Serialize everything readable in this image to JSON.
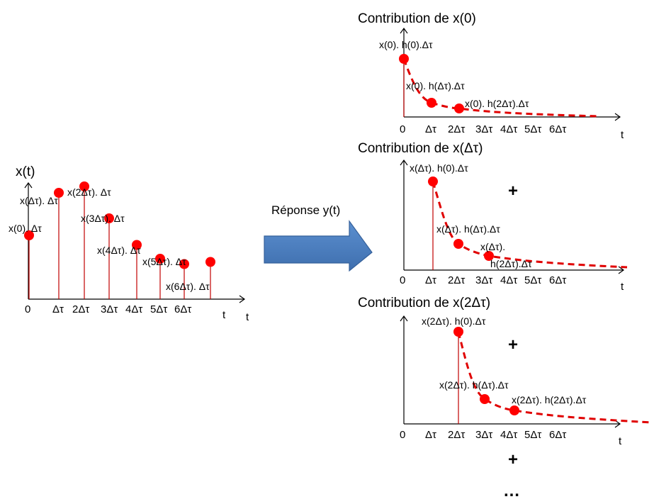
{
  "input": {
    "y_label": "x(t)",
    "t_label_1": "t",
    "t_label_2": "t",
    "ticks": [
      "0",
      "Δτ",
      "2Δτ",
      "3Δτ",
      "4Δτ",
      "5Δτ",
      "6Δτ"
    ],
    "samples": [
      {
        "label": "x(0). Δτ",
        "value": 0.6
      },
      {
        "label": "x(Δτ). Δτ",
        "value": 1.0
      },
      {
        "label": "x(2Δτ). Δτ",
        "value": 1.06
      },
      {
        "label": "x(3Δτ). Δτ",
        "value": 0.76
      },
      {
        "label": "x(4Δτ). Δτ",
        "value": 0.51
      },
      {
        "label": "x(5Δτ). Δτ",
        "value": 0.38
      },
      {
        "label": "x(6Δτ). Δτ",
        "value": 0.33
      },
      {
        "label": "",
        "value": 0.35
      }
    ]
  },
  "arrow": {
    "label": "Réponse y(t)"
  },
  "contributions": [
    {
      "title": "Contribution de x(0)",
      "ticks": [
        "0",
        "Δτ",
        "2Δτ",
        "3Δτ",
        "4Δτ",
        "5Δτ",
        "6Δτ"
      ],
      "t_label": "t",
      "points": [
        {
          "label": "x(0). h(0).Δτ",
          "value": 1.0
        },
        {
          "label": "x(0). h(Δτ).Δτ",
          "value": 0.24
        },
        {
          "label": "x(0). h(2Δτ).Δτ",
          "value": 0.16
        }
      ]
    },
    {
      "title": "Contribution de x(Δτ)",
      "ticks": [
        "0",
        "Δτ",
        "2Δτ",
        "3Δτ",
        "4Δτ",
        "5Δτ",
        "6Δτ"
      ],
      "t_label": "t",
      "points": [
        {
          "label": "x(Δτ). h(0).Δτ",
          "value": 1.0
        },
        {
          "label": "x(Δτ). h(Δτ).Δτ",
          "value": 0.28
        },
        {
          "label": "x(Δτ).",
          "label2": "h(2Δτ).Δτ",
          "value": 0.14
        }
      ]
    },
    {
      "title": "Contribution de x(2Δτ)",
      "ticks": [
        "0",
        "Δτ",
        "2Δτ",
        "3Δτ",
        "4Δτ",
        "5Δτ",
        "6Δτ"
      ],
      "t_label": "t",
      "points": [
        {
          "label": "x(2Δτ). h(0).Δτ",
          "value": 1.0
        },
        {
          "label": "x(2Δτ). h(Δτ).Δτ",
          "value": 0.29
        },
        {
          "label": "x(2Δτ). h(2Δτ).Δτ",
          "value": 0.15
        }
      ]
    }
  ],
  "plus": "+",
  "ellipsis": "…"
}
